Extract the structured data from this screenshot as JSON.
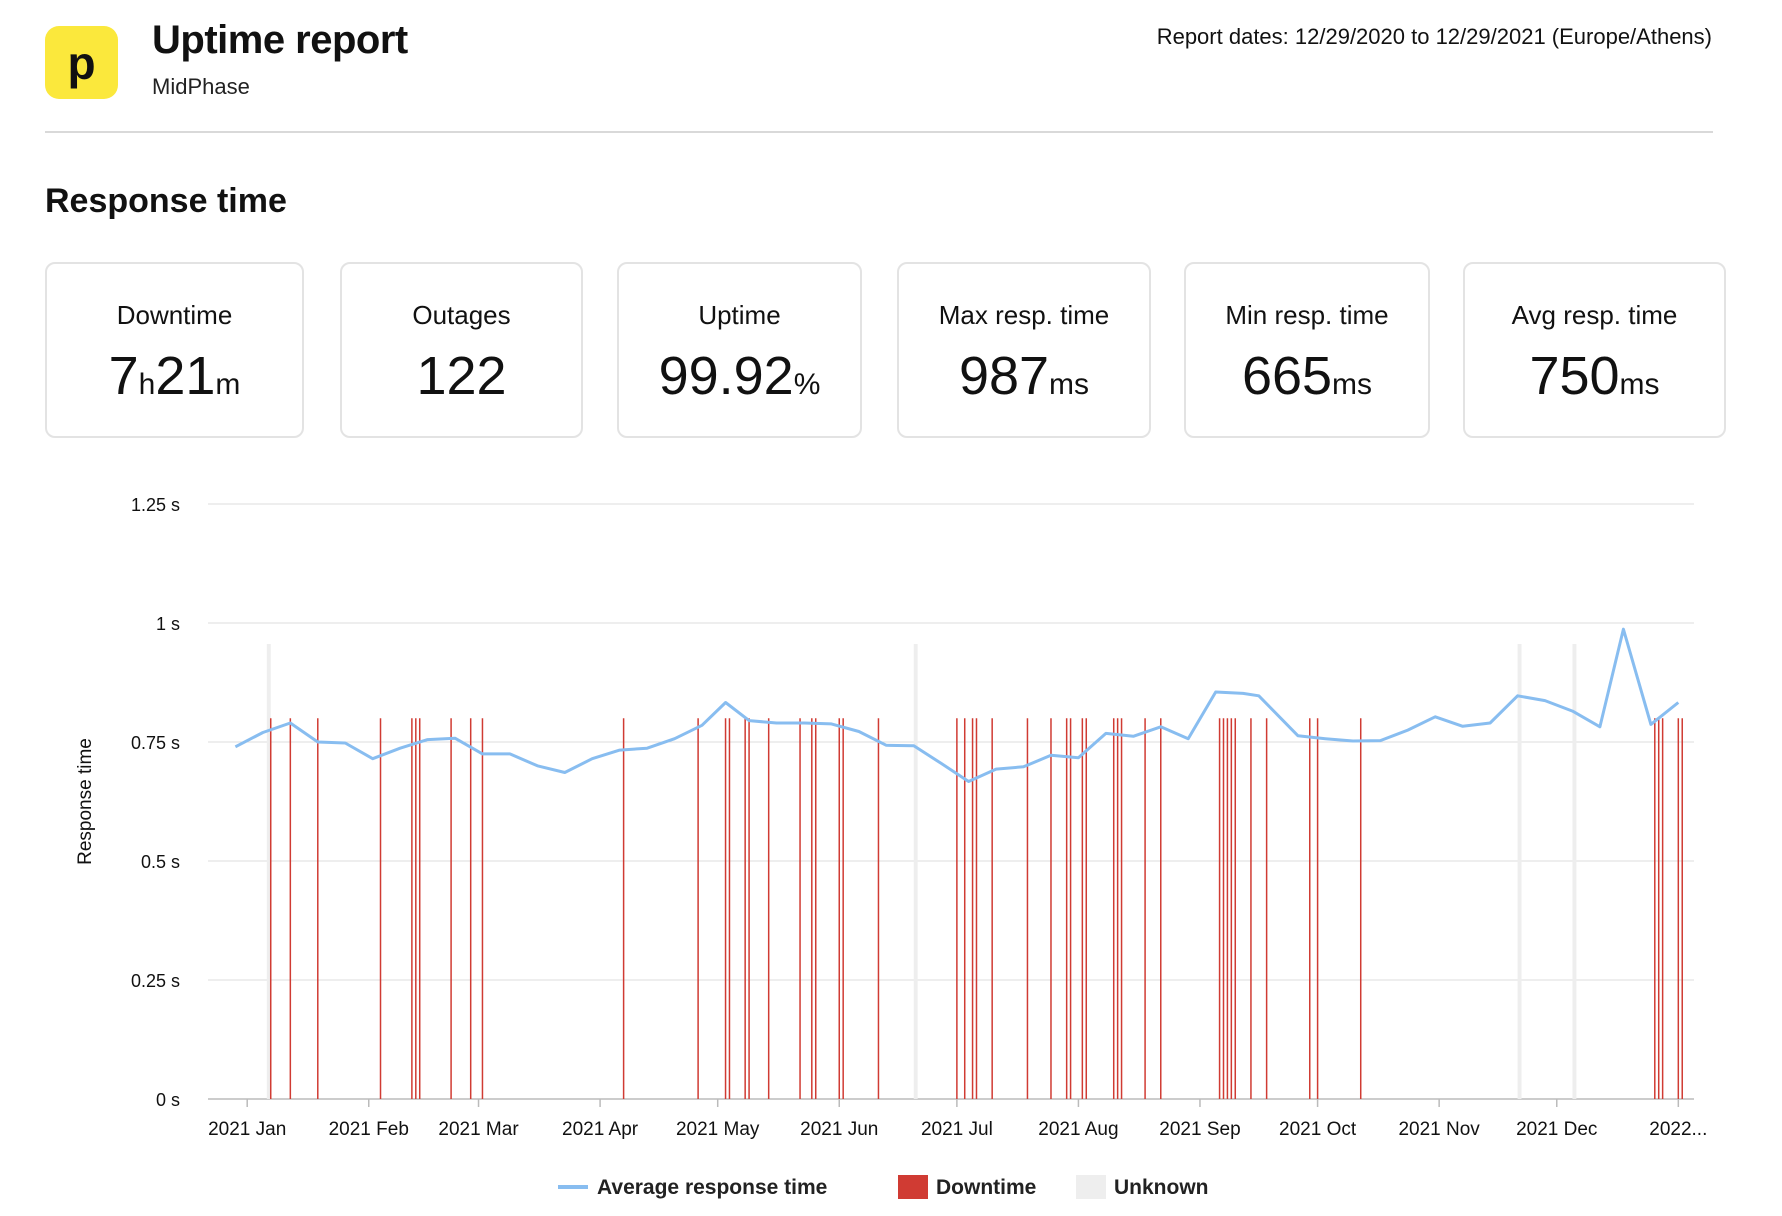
{
  "header": {
    "logo_letter": "p",
    "title": "Uptime report",
    "subtitle": "MidPhase",
    "report_dates": "Report dates: 12/29/2020 to 12/29/2021 (Europe/Athens)"
  },
  "section_title": "Response time",
  "stats": [
    {
      "label": "Downtime",
      "parts": [
        {
          "num": "7"
        },
        {
          "unit": "h"
        },
        {
          "num": "21"
        },
        {
          "unit": "m"
        }
      ]
    },
    {
      "label": "Outages",
      "parts": [
        {
          "num": "122"
        }
      ]
    },
    {
      "label": "Uptime",
      "parts": [
        {
          "num": "99.92"
        },
        {
          "unit": "%"
        }
      ]
    },
    {
      "label": "Max resp. time",
      "parts": [
        {
          "num": "987"
        },
        {
          "unit": "ms"
        }
      ]
    },
    {
      "label": "Min resp. time",
      "parts": [
        {
          "num": "665"
        },
        {
          "unit": "ms"
        }
      ]
    },
    {
      "label": "Avg resp. time",
      "parts": [
        {
          "num": "750"
        },
        {
          "unit": "ms"
        }
      ]
    }
  ],
  "colors": {
    "line": "#88bdf0",
    "downtime": "#d03b33",
    "unknown": "#eeeeee",
    "grid": "#dddddd",
    "logo": "#fbe83c"
  },
  "chart_data": {
    "type": "line",
    "ylabel": "Response time",
    "y_ticks": [
      "0 s",
      "0.25 s",
      "0.5 s",
      "0.75 s",
      "1 s",
      "1.25 s"
    ],
    "ylim": [
      0,
      1.25
    ],
    "x_tick_labels": [
      "2021 Jan",
      "2021 Feb",
      "2021 Mar",
      "2021 Apr",
      "2021 May",
      "2021 Jun",
      "2021 Jul",
      "2021 Aug",
      "2021 Sep",
      "2021 Oct",
      "2021 Nov",
      "2021 Dec",
      "2022..."
    ],
    "x_ticks": [
      "2021-01-01",
      "2021-02-01",
      "2021-03-01",
      "2021-04-01",
      "2021-05-01",
      "2021-06-01",
      "2021-07-01",
      "2021-08-01",
      "2021-09-01",
      "2021-10-01",
      "2021-11-01",
      "2021-12-01",
      "2022-01-01"
    ],
    "x_range": [
      "2020-12-22",
      "2022-01-05"
    ],
    "legend": [
      {
        "label": "Average response time",
        "kind": "line"
      },
      {
        "label": "Downtime",
        "kind": "box"
      },
      {
        "label": "Unknown",
        "kind": "box"
      }
    ],
    "legend_position": "bottom",
    "grid": true,
    "series": [
      {
        "name": "Average response time",
        "points": [
          [
            "2020-12-29",
            0.74
          ],
          [
            "2021-01-05",
            0.77
          ],
          [
            "2021-01-12",
            0.79
          ],
          [
            "2021-01-19",
            0.75
          ],
          [
            "2021-01-26",
            0.748
          ],
          [
            "2021-02-02",
            0.715
          ],
          [
            "2021-02-09",
            0.737
          ],
          [
            "2021-02-16",
            0.755
          ],
          [
            "2021-02-23",
            0.758
          ],
          [
            "2021-03-02",
            0.725
          ],
          [
            "2021-03-09",
            0.725
          ],
          [
            "2021-03-16",
            0.7
          ],
          [
            "2021-03-23",
            0.686
          ],
          [
            "2021-03-30",
            0.715
          ],
          [
            "2021-04-06",
            0.733
          ],
          [
            "2021-04-13",
            0.737
          ],
          [
            "2021-04-20",
            0.757
          ],
          [
            "2021-04-27",
            0.785
          ],
          [
            "2021-05-03",
            0.833
          ],
          [
            "2021-05-09",
            0.795
          ],
          [
            "2021-05-16",
            0.79
          ],
          [
            "2021-05-23",
            0.79
          ],
          [
            "2021-05-30",
            0.788
          ],
          [
            "2021-06-06",
            0.772
          ],
          [
            "2021-06-13",
            0.743
          ],
          [
            "2021-06-20",
            0.742
          ],
          [
            "2021-06-27",
            0.705
          ],
          [
            "2021-07-04",
            0.667
          ],
          [
            "2021-07-11",
            0.693
          ],
          [
            "2021-07-18",
            0.698
          ],
          [
            "2021-07-25",
            0.722
          ],
          [
            "2021-08-01",
            0.717
          ],
          [
            "2021-08-08",
            0.768
          ],
          [
            "2021-08-15",
            0.762
          ],
          [
            "2021-08-22",
            0.782
          ],
          [
            "2021-08-29",
            0.757
          ],
          [
            "2021-09-05",
            0.855
          ],
          [
            "2021-09-12",
            0.852
          ],
          [
            "2021-09-16",
            0.847
          ],
          [
            "2021-09-26",
            0.763
          ],
          [
            "2021-10-03",
            0.757
          ],
          [
            "2021-10-10",
            0.752
          ],
          [
            "2021-10-17",
            0.753
          ],
          [
            "2021-10-24",
            0.775
          ],
          [
            "2021-10-31",
            0.803
          ],
          [
            "2021-11-07",
            0.783
          ],
          [
            "2021-11-14",
            0.79
          ],
          [
            "2021-11-21",
            0.847
          ],
          [
            "2021-11-28",
            0.837
          ],
          [
            "2021-12-05",
            0.815
          ],
          [
            "2021-12-12",
            0.782
          ],
          [
            "2021-12-18",
            0.987
          ],
          [
            "2021-12-25",
            0.787
          ],
          [
            "2022-01-01",
            0.833
          ]
        ]
      }
    ],
    "downtime_dates": [
      "2021-01-07",
      "2021-01-12",
      "2021-01-19",
      "2021-02-04",
      "2021-02-12",
      "2021-02-13",
      "2021-02-14",
      "2021-02-22",
      "2021-02-27",
      "2021-03-02",
      "2021-04-07",
      "2021-04-26",
      "2021-05-03",
      "2021-05-04",
      "2021-05-08",
      "2021-05-09",
      "2021-05-14",
      "2021-05-22",
      "2021-05-25",
      "2021-05-26",
      "2021-06-01",
      "2021-06-02",
      "2021-06-11",
      "2021-07-01",
      "2021-07-03",
      "2021-07-05",
      "2021-07-06",
      "2021-07-10",
      "2021-07-19",
      "2021-07-25",
      "2021-07-29",
      "2021-07-30",
      "2021-08-02",
      "2021-08-03",
      "2021-08-10",
      "2021-08-11",
      "2021-08-12",
      "2021-08-18",
      "2021-08-22",
      "2021-09-06",
      "2021-09-07",
      "2021-09-08",
      "2021-09-09",
      "2021-09-10",
      "2021-09-14",
      "2021-09-18",
      "2021-09-29",
      "2021-10-01",
      "2021-10-12",
      "2021-12-26",
      "2021-12-27",
      "2021-12-28",
      "2022-01-01",
      "2022-01-02"
    ],
    "unknown_ranges": [
      [
        "2021-01-06",
        "2021-01-07"
      ],
      [
        "2021-06-20",
        "2021-06-21"
      ],
      [
        "2021-11-21",
        "2021-11-22"
      ],
      [
        "2021-12-05",
        "2021-12-06"
      ]
    ]
  }
}
